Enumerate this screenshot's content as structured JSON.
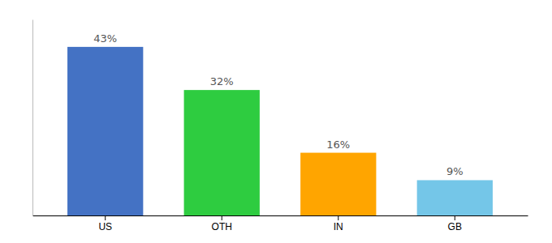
{
  "chart_data": {
    "type": "bar",
    "categories": [
      "US",
      "OTH",
      "IN",
      "GB"
    ],
    "values": [
      43,
      32,
      16,
      9
    ],
    "value_labels": [
      "43%",
      "32%",
      "16%",
      "9%"
    ],
    "colors": [
      "#4472C4",
      "#2ECC40",
      "#FFA500",
      "#74C6E8"
    ],
    "ylim": [
      0,
      50
    ],
    "data_labels": true,
    "tick_labels": "x",
    "grid": false
  }
}
